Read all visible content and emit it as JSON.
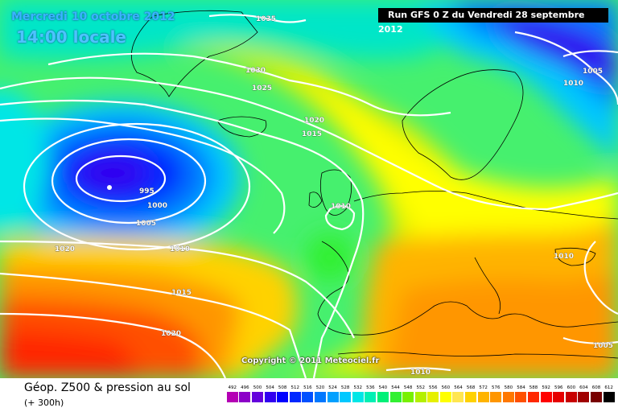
{
  "header": {
    "date": "Mercredi 10 octobre 2012",
    "local_time": "14:00 locale",
    "run": "Run GFS 0 Z du Vendredi 28 septembre 2012"
  },
  "copyright": "Copyright © 2011 Meteociel.fr",
  "legend": {
    "title": "Géop. Z500 & pression au sol",
    "subtitle": "(+ 300h)",
    "scale": [
      {
        "label": "492",
        "color": "#b400b4"
      },
      {
        "label": "496",
        "color": "#8c00c8"
      },
      {
        "label": "500",
        "color": "#6400dc"
      },
      {
        "label": "504",
        "color": "#3200f0"
      },
      {
        "label": "508",
        "color": "#0000ff"
      },
      {
        "label": "512",
        "color": "#0028ff"
      },
      {
        "label": "516",
        "color": "#0050ff"
      },
      {
        "label": "520",
        "color": "#0078ff"
      },
      {
        "label": "524",
        "color": "#00a0ff"
      },
      {
        "label": "528",
        "color": "#00c8ff"
      },
      {
        "label": "532",
        "color": "#00e6e6"
      },
      {
        "label": "536",
        "color": "#00f0b4"
      },
      {
        "label": "540",
        "color": "#00f078"
      },
      {
        "label": "544",
        "color": "#32f032"
      },
      {
        "label": "548",
        "color": "#78f000"
      },
      {
        "label": "552",
        "color": "#b4f000"
      },
      {
        "label": "556",
        "color": "#e6f000"
      },
      {
        "label": "560",
        "color": "#ffff00"
      },
      {
        "label": "564",
        "color": "#ffe650"
      },
      {
        "label": "568",
        "color": "#ffd200"
      },
      {
        "label": "572",
        "color": "#ffb400"
      },
      {
        "label": "576",
        "color": "#ff9600"
      },
      {
        "label": "580",
        "color": "#ff7800"
      },
      {
        "label": "584",
        "color": "#ff5000"
      },
      {
        "label": "588",
        "color": "#ff2800"
      },
      {
        "label": "592",
        "color": "#ff0000"
      },
      {
        "label": "596",
        "color": "#e60000"
      },
      {
        "label": "600",
        "color": "#c80000"
      },
      {
        "label": "604",
        "color": "#a00000"
      },
      {
        "label": "608",
        "color": "#780000"
      },
      {
        "label": "612",
        "color": "#000000"
      }
    ]
  },
  "isobars": [
    "1035",
    "1030",
    "1025",
    "1020",
    "1015",
    "995",
    "1000",
    "1005",
    "1020",
    "1010",
    "1010",
    "1015",
    "1020",
    "1005",
    "1010",
    "1010",
    "1005",
    "1010"
  ],
  "colors": {
    "isobar": "#ffffff",
    "coast": "#000000"
  }
}
